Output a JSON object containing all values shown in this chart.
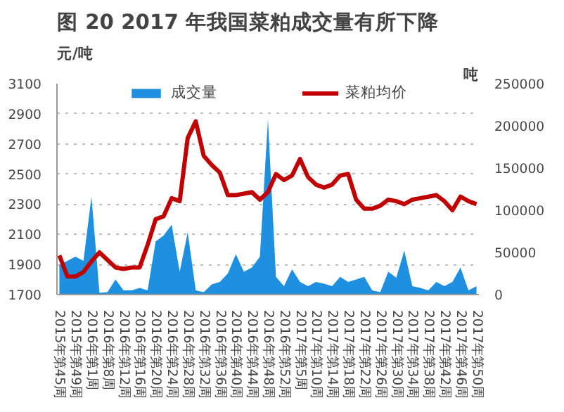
{
  "chart_data": {
    "type": "line",
    "title": "图 20 2017 年我国菜粕成交量有所下降",
    "categories": [
      "2015年第45周",
      null,
      "2015年第49周",
      null,
      "2016年第1周",
      null,
      "2016年第8周",
      null,
      "2016年第12周",
      null,
      "2016年第16周",
      null,
      "2016年第20周",
      null,
      "2016年第24周",
      null,
      "2016年第28周",
      null,
      "2016年第32周",
      null,
      "2016年第36周",
      null,
      "2016年第40周",
      null,
      "2016年第44周",
      null,
      "2016年第48周",
      null,
      "2016年第52周",
      null,
      "2017年第5周",
      null,
      "2017年第10周",
      null,
      "2017年第14周",
      null,
      "2017年第18周",
      null,
      "2017年第22周",
      null,
      "2017年第26周",
      null,
      "2017年第30周",
      null,
      "2017年第34周",
      null,
      "2017年第38周",
      null,
      "2017年第42周",
      null,
      "2017年第46周",
      null,
      "2017年第50周"
    ],
    "series": [
      {
        "name": "成交量",
        "type": "area",
        "axis": "y2",
        "color": "#1f8fe0",
        "values": [
          35000,
          40000,
          45000,
          40000,
          116000,
          2000,
          3000,
          18000,
          5000,
          5000,
          8000,
          5000,
          63000,
          70000,
          83000,
          27000,
          74000,
          5000,
          3000,
          12000,
          15000,
          25000,
          48000,
          27000,
          32000,
          45000,
          208000,
          21000,
          10000,
          30000,
          15000,
          10000,
          15000,
          13000,
          10000,
          21000,
          15000,
          18000,
          21000,
          5000,
          3000,
          27000,
          20000,
          52000,
          10000,
          8000,
          5000,
          15000,
          10000,
          15000,
          32000,
          5000,
          10000
        ]
      },
      {
        "name": "菜粕均价",
        "color": "#c00000",
        "values": [
          1960,
          1820,
          1820,
          1850,
          1920,
          1980,
          1930,
          1880,
          1870,
          1880,
          1880,
          2030,
          2200,
          2220,
          2340,
          2320,
          2740,
          2850,
          2620,
          2560,
          2510,
          2360,
          2360,
          2370,
          2380,
          2330,
          2380,
          2500,
          2460,
          2490,
          2600,
          2480,
          2430,
          2410,
          2430,
          2490,
          2500,
          2330,
          2270,
          2270,
          2290,
          2330,
          2320,
          2300,
          2330,
          2340,
          2350,
          2360,
          2320,
          2260,
          2350,
          2320,
          2300
        ]
      }
    ],
    "ylabel": "元/吨",
    "y2label": "吨",
    "ylim": [
      1700,
      3100
    ],
    "yticks": [
      1700,
      1900,
      2100,
      2300,
      2500,
      2700,
      2900,
      3100
    ],
    "y2lim": [
      0,
      250000
    ],
    "y2ticks": [
      0,
      50000,
      100000,
      150000,
      200000,
      250000
    ],
    "grid": "y",
    "legend": "top",
    "line_style": "solid",
    "marker": "none"
  }
}
